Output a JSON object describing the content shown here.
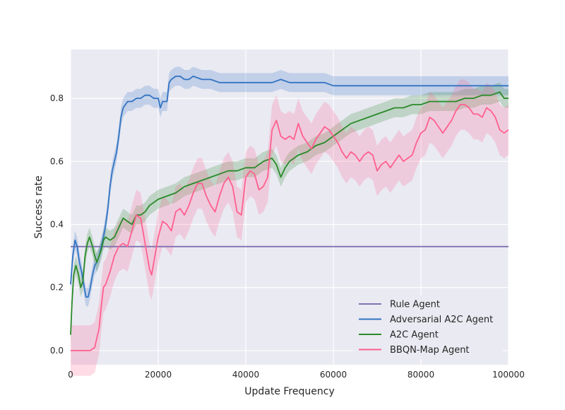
{
  "chart_data": {
    "type": "line",
    "title": "",
    "xlabel": "Update Frequency",
    "ylabel": "Success rate",
    "xlim": [
      0,
      100000
    ],
    "ylim": [
      -0.045,
      0.955
    ],
    "xticks": [
      0,
      20000,
      40000,
      60000,
      80000,
      100000
    ],
    "xtick_labels": [
      "0",
      "20000",
      "40000",
      "60000",
      "80000",
      "100000"
    ],
    "yticks": [
      0.0,
      0.2,
      0.4,
      0.6,
      0.8
    ],
    "ytick_labels": [
      "0.0",
      "0.2",
      "0.4",
      "0.6",
      "0.8"
    ],
    "grid": true,
    "legend_position": "lower-right",
    "series": [
      {
        "name": "Rule Agent",
        "color": "#8172b2",
        "band": 0,
        "points": [
          [
            0,
            0.33
          ],
          [
            100000,
            0.33
          ]
        ]
      },
      {
        "name": "Adversarial A2C Agent",
        "color": "#3274c2",
        "band": 0.03,
        "points": [
          [
            0,
            0.21
          ],
          [
            500,
            0.3
          ],
          [
            1000,
            0.35
          ],
          [
            1500,
            0.33
          ],
          [
            2000,
            0.28
          ],
          [
            2500,
            0.25
          ],
          [
            3000,
            0.21
          ],
          [
            3500,
            0.17
          ],
          [
            4000,
            0.17
          ],
          [
            4500,
            0.2
          ],
          [
            5000,
            0.24
          ],
          [
            5500,
            0.27
          ],
          [
            6000,
            0.28
          ],
          [
            6500,
            0.3
          ],
          [
            7000,
            0.33
          ],
          [
            7500,
            0.36
          ],
          [
            8000,
            0.4
          ],
          [
            8500,
            0.45
          ],
          [
            9000,
            0.52
          ],
          [
            9500,
            0.57
          ],
          [
            10000,
            0.6
          ],
          [
            10500,
            0.63
          ],
          [
            11000,
            0.68
          ],
          [
            11500,
            0.74
          ],
          [
            12000,
            0.77
          ],
          [
            13000,
            0.79
          ],
          [
            14000,
            0.79
          ],
          [
            15000,
            0.8
          ],
          [
            16000,
            0.8
          ],
          [
            17000,
            0.81
          ],
          [
            18000,
            0.81
          ],
          [
            19000,
            0.8
          ],
          [
            20000,
            0.8
          ],
          [
            20500,
            0.77
          ],
          [
            21000,
            0.79
          ],
          [
            22000,
            0.79
          ],
          [
            22500,
            0.85
          ],
          [
            23000,
            0.86
          ],
          [
            24000,
            0.87
          ],
          [
            25000,
            0.87
          ],
          [
            26000,
            0.86
          ],
          [
            27000,
            0.86
          ],
          [
            28000,
            0.87
          ],
          [
            30000,
            0.86
          ],
          [
            32000,
            0.86
          ],
          [
            34000,
            0.85
          ],
          [
            36000,
            0.85
          ],
          [
            38000,
            0.85
          ],
          [
            40000,
            0.85
          ],
          [
            42000,
            0.85
          ],
          [
            44000,
            0.85
          ],
          [
            46000,
            0.85
          ],
          [
            48000,
            0.86
          ],
          [
            50000,
            0.85
          ],
          [
            52000,
            0.85
          ],
          [
            54000,
            0.85
          ],
          [
            56000,
            0.85
          ],
          [
            58000,
            0.85
          ],
          [
            60000,
            0.84
          ],
          [
            62000,
            0.84
          ],
          [
            64000,
            0.84
          ],
          [
            66000,
            0.84
          ],
          [
            68000,
            0.84
          ],
          [
            70000,
            0.84
          ],
          [
            72000,
            0.84
          ],
          [
            74000,
            0.84
          ],
          [
            76000,
            0.84
          ],
          [
            78000,
            0.84
          ],
          [
            80000,
            0.84
          ],
          [
            82000,
            0.84
          ],
          [
            84000,
            0.84
          ],
          [
            86000,
            0.84
          ],
          [
            88000,
            0.84
          ],
          [
            90000,
            0.84
          ],
          [
            92000,
            0.84
          ],
          [
            94000,
            0.84
          ],
          [
            96000,
            0.84
          ],
          [
            98000,
            0.84
          ],
          [
            100000,
            0.84
          ]
        ]
      },
      {
        "name": "A2C Agent",
        "color": "#2a8a2a",
        "band": 0.03,
        "points": [
          [
            0,
            0.05
          ],
          [
            300,
            0.15
          ],
          [
            700,
            0.24
          ],
          [
            1200,
            0.27
          ],
          [
            1800,
            0.24
          ],
          [
            2300,
            0.2
          ],
          [
            2800,
            0.22
          ],
          [
            3300,
            0.3
          ],
          [
            3800,
            0.34
          ],
          [
            4300,
            0.36
          ],
          [
            5000,
            0.33
          ],
          [
            5500,
            0.3
          ],
          [
            6000,
            0.28
          ],
          [
            6500,
            0.3
          ],
          [
            7000,
            0.32
          ],
          [
            7500,
            0.35
          ],
          [
            8000,
            0.36
          ],
          [
            9000,
            0.35
          ],
          [
            10000,
            0.36
          ],
          [
            11000,
            0.39
          ],
          [
            12000,
            0.42
          ],
          [
            13000,
            0.41
          ],
          [
            14000,
            0.4
          ],
          [
            15000,
            0.43
          ],
          [
            16000,
            0.43
          ],
          [
            17000,
            0.44
          ],
          [
            18000,
            0.46
          ],
          [
            19000,
            0.47
          ],
          [
            20000,
            0.48
          ],
          [
            22000,
            0.49
          ],
          [
            24000,
            0.5
          ],
          [
            26000,
            0.52
          ],
          [
            28000,
            0.53
          ],
          [
            30000,
            0.54
          ],
          [
            32000,
            0.55
          ],
          [
            34000,
            0.56
          ],
          [
            36000,
            0.57
          ],
          [
            38000,
            0.57
          ],
          [
            40000,
            0.58
          ],
          [
            42000,
            0.58
          ],
          [
            44000,
            0.6
          ],
          [
            46000,
            0.61
          ],
          [
            47000,
            0.59
          ],
          [
            48000,
            0.55
          ],
          [
            49000,
            0.58
          ],
          [
            50000,
            0.6
          ],
          [
            52000,
            0.62
          ],
          [
            54000,
            0.63
          ],
          [
            56000,
            0.65
          ],
          [
            58000,
            0.66
          ],
          [
            60000,
            0.68
          ],
          [
            62000,
            0.7
          ],
          [
            64000,
            0.72
          ],
          [
            66000,
            0.73
          ],
          [
            68000,
            0.74
          ],
          [
            70000,
            0.75
          ],
          [
            72000,
            0.76
          ],
          [
            74000,
            0.77
          ],
          [
            76000,
            0.77
          ],
          [
            78000,
            0.78
          ],
          [
            80000,
            0.78
          ],
          [
            82000,
            0.79
          ],
          [
            84000,
            0.79
          ],
          [
            86000,
            0.79
          ],
          [
            88000,
            0.79
          ],
          [
            90000,
            0.8
          ],
          [
            92000,
            0.8
          ],
          [
            94000,
            0.81
          ],
          [
            96000,
            0.81
          ],
          [
            98000,
            0.82
          ],
          [
            99000,
            0.8
          ],
          [
            100000,
            0.8
          ]
        ]
      },
      {
        "name": "BBQN-Map Agent",
        "color": "#ff5f8f",
        "band": 0.08,
        "points": [
          [
            0,
            0.0
          ],
          [
            2000,
            0.0
          ],
          [
            3500,
            0.0
          ],
          [
            4500,
            0.0
          ],
          [
            5500,
            0.01
          ],
          [
            6500,
            0.07
          ],
          [
            7000,
            0.14
          ],
          [
            7500,
            0.2
          ],
          [
            8000,
            0.21
          ],
          [
            9000,
            0.25
          ],
          [
            10000,
            0.3
          ],
          [
            11000,
            0.33
          ],
          [
            12000,
            0.34
          ],
          [
            13000,
            0.33
          ],
          [
            14000,
            0.38
          ],
          [
            15000,
            0.43
          ],
          [
            16000,
            0.42
          ],
          [
            17000,
            0.34
          ],
          [
            18000,
            0.26
          ],
          [
            18500,
            0.24
          ],
          [
            19000,
            0.28
          ],
          [
            20000,
            0.36
          ],
          [
            21000,
            0.41
          ],
          [
            22000,
            0.4
          ],
          [
            23000,
            0.38
          ],
          [
            24000,
            0.44
          ],
          [
            25000,
            0.45
          ],
          [
            26000,
            0.43
          ],
          [
            27000,
            0.46
          ],
          [
            28000,
            0.5
          ],
          [
            29000,
            0.53
          ],
          [
            30000,
            0.53
          ],
          [
            31000,
            0.49
          ],
          [
            32000,
            0.46
          ],
          [
            33000,
            0.44
          ],
          [
            34000,
            0.49
          ],
          [
            35000,
            0.53
          ],
          [
            36000,
            0.55
          ],
          [
            37000,
            0.52
          ],
          [
            38000,
            0.44
          ],
          [
            39000,
            0.43
          ],
          [
            40000,
            0.55
          ],
          [
            41000,
            0.57
          ],
          [
            42000,
            0.56
          ],
          [
            43000,
            0.51
          ],
          [
            44000,
            0.52
          ],
          [
            45000,
            0.55
          ],
          [
            46000,
            0.7
          ],
          [
            47000,
            0.73
          ],
          [
            48000,
            0.68
          ],
          [
            49000,
            0.67
          ],
          [
            50000,
            0.68
          ],
          [
            51000,
            0.67
          ],
          [
            52000,
            0.72
          ],
          [
            53000,
            0.68
          ],
          [
            54000,
            0.66
          ],
          [
            55000,
            0.64
          ],
          [
            56000,
            0.67
          ],
          [
            57000,
            0.69
          ],
          [
            58000,
            0.71
          ],
          [
            59000,
            0.7
          ],
          [
            60000,
            0.68
          ],
          [
            61000,
            0.66
          ],
          [
            62000,
            0.63
          ],
          [
            63000,
            0.61
          ],
          [
            64000,
            0.63
          ],
          [
            65000,
            0.62
          ],
          [
            66000,
            0.6
          ],
          [
            67000,
            0.62
          ],
          [
            68000,
            0.63
          ],
          [
            69000,
            0.62
          ],
          [
            70000,
            0.57
          ],
          [
            71000,
            0.59
          ],
          [
            72000,
            0.6
          ],
          [
            73000,
            0.58
          ],
          [
            74000,
            0.6
          ],
          [
            75000,
            0.62
          ],
          [
            76000,
            0.6
          ],
          [
            77000,
            0.61
          ],
          [
            78000,
            0.62
          ],
          [
            79000,
            0.66
          ],
          [
            80000,
            0.69
          ],
          [
            81000,
            0.7
          ],
          [
            82000,
            0.74
          ],
          [
            83000,
            0.73
          ],
          [
            84000,
            0.71
          ],
          [
            85000,
            0.69
          ],
          [
            86000,
            0.71
          ],
          [
            87000,
            0.73
          ],
          [
            88000,
            0.76
          ],
          [
            89000,
            0.78
          ],
          [
            90000,
            0.78
          ],
          [
            91000,
            0.77
          ],
          [
            92000,
            0.75
          ],
          [
            93000,
            0.75
          ],
          [
            94000,
            0.74
          ],
          [
            95000,
            0.77
          ],
          [
            96000,
            0.76
          ],
          [
            97000,
            0.74
          ],
          [
            98000,
            0.7
          ],
          [
            99000,
            0.69
          ],
          [
            100000,
            0.7
          ]
        ]
      }
    ]
  }
}
